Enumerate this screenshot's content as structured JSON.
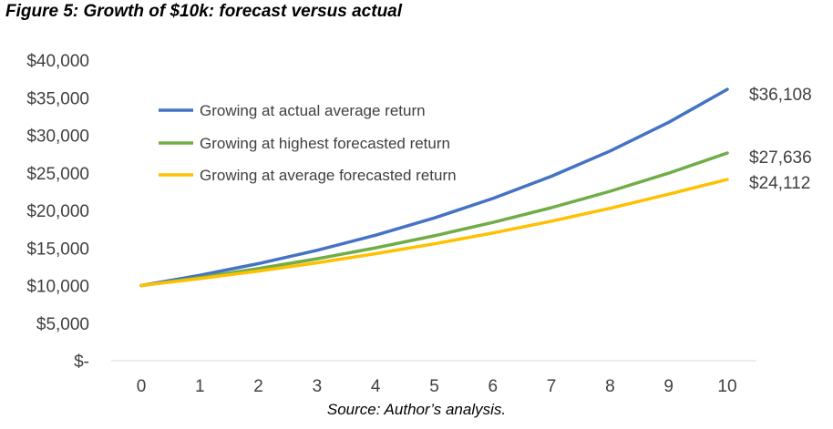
{
  "figure_title": "Figure 5: Growth of $10k: forecast versus actual",
  "source_note": "Source: Author’s analysis.",
  "chart_data": {
    "type": "line",
    "title": "",
    "xlabel": "",
    "ylabel": "",
    "x": [
      0,
      1,
      2,
      3,
      4,
      5,
      6,
      7,
      8,
      9,
      10
    ],
    "xlim": [
      0,
      10
    ],
    "ylim": [
      0,
      40000
    ],
    "y_ticks": [
      0,
      5000,
      10000,
      15000,
      20000,
      25000,
      30000,
      35000,
      40000
    ],
    "y_tick_labels": [
      "$-",
      "$5,000",
      "$10,000",
      "$15,000",
      "$20,000",
      "$25,000",
      "$30,000",
      "$35,000",
      "$40,000"
    ],
    "x_tick_labels": [
      "0",
      "1",
      "2",
      "3",
      "4",
      "5",
      "6",
      "7",
      "8",
      "9",
      "10"
    ],
    "grid": false,
    "legend_position": "top-left",
    "series": [
      {
        "name": "Growing at actual average return",
        "color": "#4472C4",
        "values": [
          10000,
          11369,
          12925,
          14694,
          16705,
          18992,
          21591,
          24546,
          27906,
          31725,
          36108
        ],
        "end_label": "$36,108"
      },
      {
        "name": "Growing at highest forecasted return",
        "color": "#70AD47",
        "values": [
          10000,
          11069,
          12253,
          13563,
          15014,
          16620,
          18397,
          20365,
          22543,
          24954,
          27636
        ],
        "end_label": "$27,636"
      },
      {
        "name": "Growing at average forecasted return",
        "color": "#FFC000",
        "values": [
          10000,
          10924,
          11933,
          13036,
          14241,
          15557,
          16994,
          18565,
          20280,
          22154,
          24112
        ],
        "end_label": "$24,112"
      }
    ]
  }
}
